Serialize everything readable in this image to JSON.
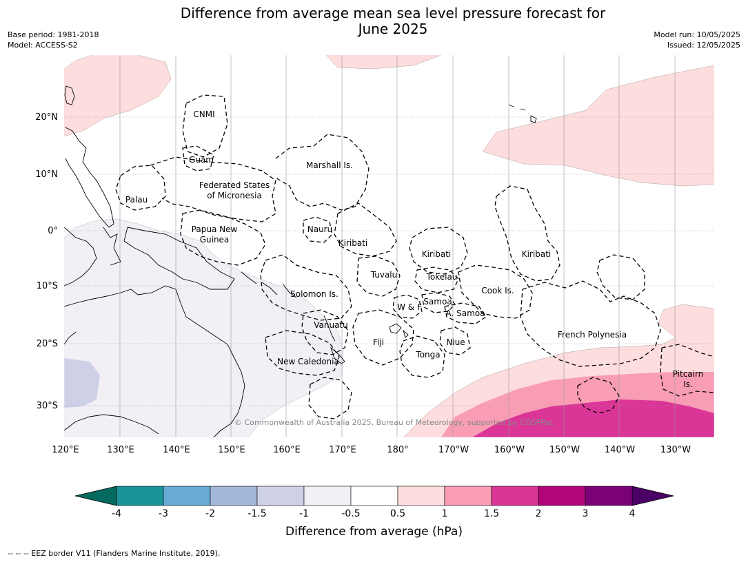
{
  "title_line1": "Difference from average mean sea level pressure forecast for",
  "title_line2": "June 2025",
  "base_period": "Base period: 1981-2018",
  "model": "Model: ACCESS-S2",
  "model_run": "Model run: 10/05/2025",
  "issued": "Issued: 12/05/2025",
  "copyright": "© Commonwealth of Australia 2025, Bureau of Meteorology, supported by COSPPac",
  "lon_ticks": [
    "120°E",
    "130°E",
    "140°E",
    "150°E",
    "160°E",
    "170°E",
    "180°",
    "170°W",
    "160°W",
    "150°W",
    "140°W",
    "130°W"
  ],
  "lat_ticks": [
    "20°N",
    "10°N",
    "0°",
    "10°S",
    "20°S",
    "30°S"
  ],
  "regions": [
    {
      "name": "CNMI"
    },
    {
      "name": "Guam"
    },
    {
      "name": "Marshall Is."
    },
    {
      "name": "Federated States"
    },
    {
      "name": "of Micronesia"
    },
    {
      "name": "Palau"
    },
    {
      "name": "Papua New"
    },
    {
      "name": "Guinea"
    },
    {
      "name": "Nauru"
    },
    {
      "name": "Kiribati"
    },
    {
      "name": "Kiribati"
    },
    {
      "name": "Kiribati"
    },
    {
      "name": "Tuvalu"
    },
    {
      "name": "Tokelau"
    },
    {
      "name": "Cook Is."
    },
    {
      "name": "Solomon Is."
    },
    {
      "name": "W & F"
    },
    {
      "name": "Samoa"
    },
    {
      "name": "A. Samoa"
    },
    {
      "name": "Vanuatu"
    },
    {
      "name": "Fiji"
    },
    {
      "name": "Niue"
    },
    {
      "name": "Tonga"
    },
    {
      "name": "French Polynesia"
    },
    {
      "name": "New Caledonia"
    },
    {
      "name": "Pitcairn"
    },
    {
      "name": "Is."
    }
  ],
  "colorbar": {
    "ticks": [
      "-4",
      "-3",
      "-2",
      "-1.5",
      "-1",
      "-0.5",
      "0.5",
      "1",
      "1.5",
      "2",
      "3",
      "4"
    ],
    "colors": [
      "#1a9296",
      "#67abd5",
      "#a3b7d8",
      "#cdd0e6",
      "#f2eff5",
      "#ffffff",
      "#fddddd",
      "#f99db5",
      "#da3597",
      "#b10679",
      "#7b0179"
    ],
    "under_color": "#04695f",
    "over_color": "#4b0065",
    "label": "Difference from average (hPa)"
  },
  "footer": "--  --  -- EEZ border V11 (Flanders Marine Institute, 2019)."
}
